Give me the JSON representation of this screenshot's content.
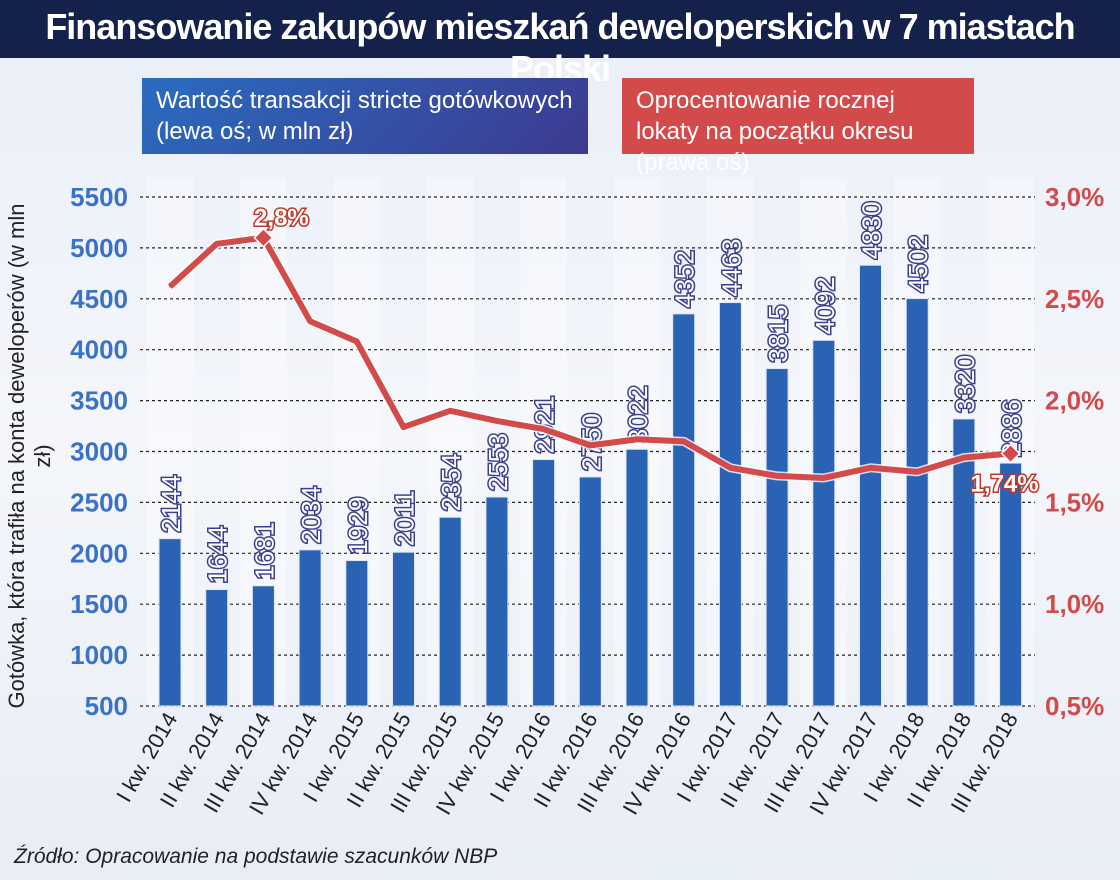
{
  "title": "Finansowanie zakupów mieszkań deweloperskich w 7 miastach Polski",
  "source": "Źródło: Opracowanie na podstawie szacunków NBP",
  "chart_data": {
    "type": "bar+line",
    "title": "Finansowanie zakupów mieszkań deweloperskich w 7 miastach Polski",
    "ylabel": "Gotówka, która trafiła na konta deweloperów (w mln zł)",
    "ylim": [
      500,
      5500
    ],
    "y_ticks": [
      "5500",
      "5000",
      "4500",
      "4000",
      "3500",
      "3000",
      "2500",
      "2000",
      "1500",
      "1000",
      "500"
    ],
    "y2lim": [
      0.5,
      3.0
    ],
    "y2_ticks": [
      "3,0%",
      "2,5%",
      "2,0%",
      "1,5%",
      "1,0%",
      "0,5%"
    ],
    "grid": true,
    "categories": [
      "I kw. 2014",
      "II kw. 2014",
      "III kw. 2014",
      "IV kw. 2014",
      "I kw. 2015",
      "II kw. 2015",
      "III kw. 2015",
      "IV kw. 2015",
      "I kw. 2016",
      "II kw. 2016",
      "III kw. 2016",
      "IV kw. 2016",
      "I kw. 2017",
      "II kw. 2017",
      "III kw. 2017",
      "IV kw. 2017",
      "I kw. 2018",
      "II kw. 2018",
      "III kw. 2018"
    ],
    "series": [
      {
        "name": "Wartość transakcji stricte gotówkowych (lewa oś; w mln zł)",
        "type": "bar",
        "axis": "left",
        "color": "#2a62b4",
        "values": [
          2144,
          1644,
          1681,
          2034,
          1929,
          2011,
          2354,
          2553,
          2921,
          2750,
          3022,
          4352,
          4463,
          3815,
          4092,
          4830,
          4502,
          3320,
          2886
        ]
      },
      {
        "name": "Oprocentowanie rocznej lokaty na początku okresu (prawa oś)",
        "type": "line",
        "axis": "right",
        "color": "#d34a4a",
        "values": [
          2.56,
          2.77,
          2.8,
          2.39,
          2.29,
          1.87,
          1.95,
          1.9,
          1.86,
          1.78,
          1.81,
          1.8,
          1.67,
          1.63,
          1.62,
          1.67,
          1.65,
          1.72,
          1.74
        ],
        "annotations": [
          {
            "index": 2,
            "label": "2,8%"
          },
          {
            "index": 18,
            "label": "1,74%"
          }
        ]
      }
    ]
  }
}
